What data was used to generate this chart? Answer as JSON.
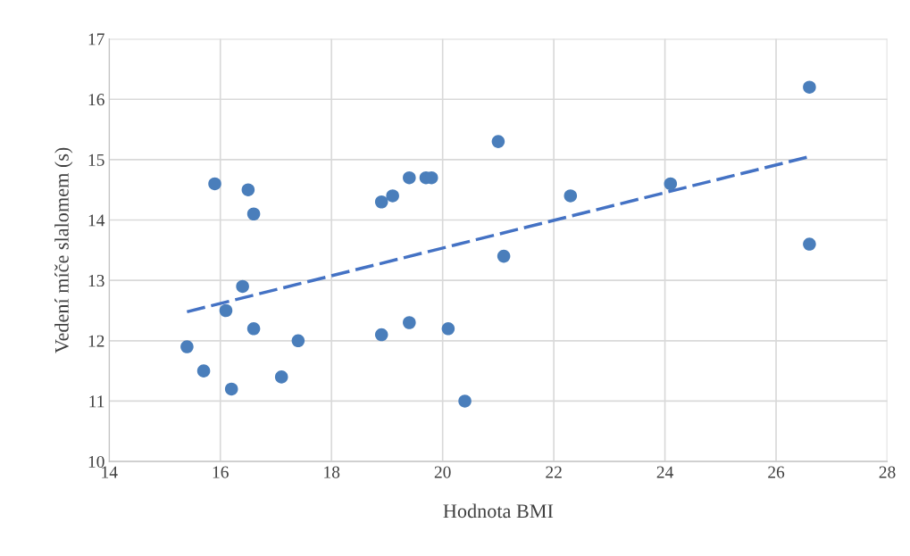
{
  "chart_data": {
    "type": "scatter",
    "xlabel": "Hodnota BMI",
    "ylabel": "Vedení míče slalomem (s)",
    "xlim": [
      14,
      28
    ],
    "xticks": [
      14,
      16,
      18,
      20,
      22,
      24,
      26,
      28
    ],
    "ylim": [
      10,
      17
    ],
    "yticks": [
      10,
      11,
      12,
      13,
      14,
      15,
      16,
      17
    ],
    "grid": true,
    "legend": false,
    "series": [
      {
        "color": "#4a7ebb",
        "marker": "circle",
        "x": [
          15.4,
          15.7,
          15.9,
          16.1,
          16.2,
          16.4,
          16.5,
          16.6,
          16.6,
          17.1,
          17.4,
          18.9,
          18.9,
          19.1,
          19.4,
          19.4,
          19.7,
          19.8,
          20.1,
          20.4,
          21.0,
          21.1,
          22.3,
          24.1,
          26.6,
          26.6
        ],
        "values": [
          11.9,
          11.5,
          14.6,
          12.5,
          11.2,
          12.9,
          14.5,
          14.1,
          12.2,
          11.4,
          12.0,
          14.3,
          12.1,
          14.4,
          14.7,
          12.3,
          14.7,
          14.7,
          12.2,
          11.0,
          15.3,
          13.4,
          14.4,
          14.6,
          16.2,
          13.6
        ]
      },
      {
        "type": "line",
        "color": "#4472c4",
        "line_style": "dashed",
        "x": [
          15.4,
          26.6
        ],
        "values": [
          12.48,
          15.05
        ]
      }
    ]
  }
}
